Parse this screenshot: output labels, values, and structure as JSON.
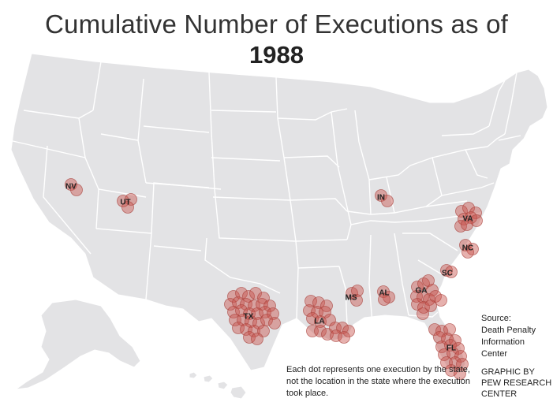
{
  "title": {
    "line1": "Cumulative Number of Executions as of",
    "year": "1988"
  },
  "source": {
    "label": "Source:",
    "text": "Death Penalty Information Center"
  },
  "credit": "GRAPHIC BY PEW RESEARCH CENTER",
  "note": "Each dot represents one execution by the state, not the location in the state where the execution took place.",
  "colors": {
    "land": "#e3e3e5",
    "borders": "#ffffff",
    "dot_fill": "#c8524b",
    "dot_stroke": "#a8403a"
  },
  "states": [
    {
      "abbr": "NV",
      "executions": 2
    },
    {
      "abbr": "UT",
      "executions": 3
    },
    {
      "abbr": "IN",
      "executions": 2
    },
    {
      "abbr": "VA",
      "executions": 8
    },
    {
      "abbr": "NC",
      "executions": 3
    },
    {
      "abbr": "SC",
      "executions": 2
    },
    {
      "abbr": "TX",
      "executions": 29
    },
    {
      "abbr": "LA",
      "executions": 17
    },
    {
      "abbr": "MS",
      "executions": 3
    },
    {
      "abbr": "AL",
      "executions": 3
    },
    {
      "abbr": "GA",
      "executions": 13
    },
    {
      "abbr": "FL",
      "executions": 17
    }
  ]
}
